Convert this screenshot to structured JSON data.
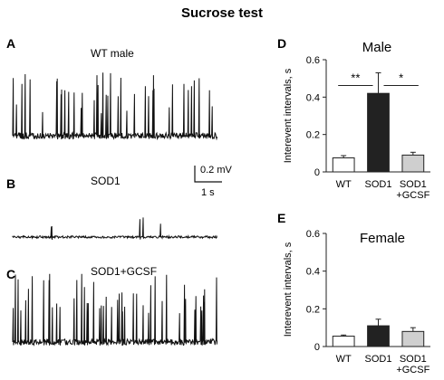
{
  "figure_title": "Sucrose test",
  "colors": {
    "trace": "#111111",
    "wt": "#ffffff",
    "sod1": "#222222",
    "sod1_gcsf": "#cfcfcf",
    "edge": "#222222"
  },
  "traces": [
    {
      "letter": "A",
      "label": "WT male",
      "density": 0.11,
      "spike_max": 0.9
    },
    {
      "letter": "B",
      "label": "SOD1",
      "density": 0.025,
      "spike_max": 0.5
    },
    {
      "letter": "C",
      "label": "SOD1+GCSF",
      "density": 0.13,
      "spike_max": 0.85
    }
  ],
  "scale_bar": {
    "amplitude": "0.2 mV",
    "time": "1 s"
  },
  "chart_data": [
    {
      "type": "bar",
      "letter": "D",
      "title": "Male",
      "ylabel": "Interevent intervals, s",
      "categories": [
        "WT",
        "SOD1",
        "SOD1\n+GCSF"
      ],
      "values": [
        0.075,
        0.42,
        0.09
      ],
      "errors": [
        0.012,
        0.11,
        0.015
      ],
      "ylim": [
        0,
        0.6
      ],
      "yticks": [
        0,
        0.2,
        0.4,
        0.6
      ],
      "ytick_labels": [
        "0",
        "0.2",
        "0.4",
        "0.6"
      ],
      "significance": [
        {
          "from": 0,
          "to": 1,
          "label": "**"
        },
        {
          "from": 1,
          "to": 2,
          "label": "*"
        }
      ]
    },
    {
      "type": "bar",
      "letter": "E",
      "title": "Female",
      "ylabel": "Interevent intervals, s",
      "categories": [
        "WT",
        "SOD1",
        "SOD1\n+GCSF"
      ],
      "values": [
        0.055,
        0.11,
        0.08
      ],
      "errors": [
        0.006,
        0.035,
        0.02
      ],
      "ylim": [
        0,
        0.6
      ],
      "yticks": [
        0,
        0.2,
        0.4,
        0.6
      ],
      "ytick_labels": [
        "0",
        "0.2",
        "0.4",
        "0.6"
      ],
      "significance": []
    }
  ]
}
